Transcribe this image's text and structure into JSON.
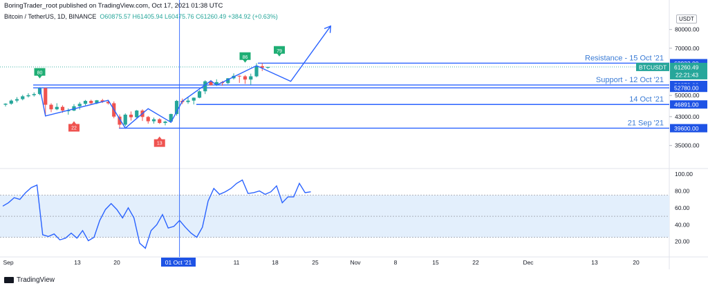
{
  "header": {
    "published": "BoringTrader_root published on TradingView.com, Oct 17, 2021 01:38 UTC",
    "symbol": "Bitcoin / TetherUS, 1D, BINANCE",
    "open": "O60875.57",
    "high": "H61405.94",
    "low": "L60475.76",
    "close": "C61260.49",
    "change": "+384.92 (+0.63%)"
  },
  "currency_badge": "USDT",
  "footer_logo": "TradingView",
  "colors": {
    "bull": "#26a69a",
    "bear": "#ef5350",
    "line": "#2962ff",
    "text_line": "#3a7bd5",
    "rsi_band": "#e3effc"
  },
  "chart_data": [
    {
      "type": "candlestick",
      "x_ticks": [
        "Sep",
        "13",
        "20",
        "01 Oct '21",
        "11",
        "18",
        "25",
        "Nov",
        "8",
        "15",
        "22",
        "Dec",
        "13",
        "20"
      ],
      "y_ticks": [
        80000,
        70000,
        50000,
        43000,
        35000
      ],
      "ylim": [
        30000,
        86000
      ],
      "scale": "log",
      "candles": [
        {
          "o": 46800,
          "h": 47300,
          "l": 46200,
          "c": 47150
        },
        {
          "o": 47150,
          "h": 48600,
          "l": 46800,
          "c": 48200
        },
        {
          "o": 48200,
          "h": 49400,
          "l": 47600,
          "c": 48700
        },
        {
          "o": 48700,
          "h": 50200,
          "l": 48300,
          "c": 49700
        },
        {
          "o": 49700,
          "h": 50800,
          "l": 49300,
          "c": 50100
        },
        {
          "o": 50100,
          "h": 51100,
          "l": 49600,
          "c": 50500
        },
        {
          "o": 50500,
          "h": 52900,
          "l": 50100,
          "c": 52700
        },
        {
          "o": 52700,
          "h": 52900,
          "l": 43100,
          "c": 46800
        },
        {
          "o": 46800,
          "h": 47300,
          "l": 44400,
          "c": 45300
        },
        {
          "o": 45300,
          "h": 47300,
          "l": 45000,
          "c": 46100
        },
        {
          "o": 46100,
          "h": 46600,
          "l": 44200,
          "c": 44900
        },
        {
          "o": 44900,
          "h": 45600,
          "l": 43600,
          "c": 44900
        },
        {
          "o": 44900,
          "h": 47000,
          "l": 44700,
          "c": 46300
        },
        {
          "o": 46300,
          "h": 47700,
          "l": 45200,
          "c": 47100
        },
        {
          "o": 47100,
          "h": 48400,
          "l": 46600,
          "c": 48100
        },
        {
          "o": 48100,
          "h": 48500,
          "l": 46700,
          "c": 47300
        },
        {
          "o": 47300,
          "h": 48400,
          "l": 47000,
          "c": 48300
        },
        {
          "o": 48300,
          "h": 48800,
          "l": 47400,
          "c": 47800
        },
        {
          "o": 47800,
          "h": 48300,
          "l": 46900,
          "c": 47300
        },
        {
          "o": 47300,
          "h": 47900,
          "l": 42500,
          "c": 43000
        },
        {
          "o": 43000,
          "h": 43700,
          "l": 39600,
          "c": 40600
        },
        {
          "o": 40600,
          "h": 44000,
          "l": 40100,
          "c": 43600
        },
        {
          "o": 43600,
          "h": 44600,
          "l": 41800,
          "c": 42800
        },
        {
          "o": 42800,
          "h": 45100,
          "l": 42300,
          "c": 44900
        },
        {
          "o": 44900,
          "h": 45300,
          "l": 41700,
          "c": 42900
        },
        {
          "o": 42900,
          "h": 43200,
          "l": 40900,
          "c": 41600
        },
        {
          "o": 41600,
          "h": 42700,
          "l": 40900,
          "c": 42200
        },
        {
          "o": 42200,
          "h": 42500,
          "l": 40800,
          "c": 41100
        },
        {
          "o": 41100,
          "h": 41800,
          "l": 40400,
          "c": 41500
        },
        {
          "o": 41500,
          "h": 43900,
          "l": 41100,
          "c": 43800
        },
        {
          "o": 43800,
          "h": 48400,
          "l": 43300,
          "c": 48100
        },
        {
          "o": 48100,
          "h": 48900,
          "l": 47000,
          "c": 47700
        },
        {
          "o": 47700,
          "h": 49400,
          "l": 47100,
          "c": 48200
        },
        {
          "o": 48200,
          "h": 49300,
          "l": 46900,
          "c": 49200
        },
        {
          "o": 49200,
          "h": 51900,
          "l": 49000,
          "c": 51500
        },
        {
          "o": 51500,
          "h": 55700,
          "l": 50500,
          "c": 55300
        },
        {
          "o": 55300,
          "h": 55800,
          "l": 53700,
          "c": 53800
        },
        {
          "o": 53800,
          "h": 56100,
          "l": 53500,
          "c": 55000
        },
        {
          "o": 55000,
          "h": 55400,
          "l": 53600,
          "c": 54600
        },
        {
          "o": 54600,
          "h": 56600,
          "l": 54200,
          "c": 56500
        },
        {
          "o": 56500,
          "h": 58500,
          "l": 56000,
          "c": 57500
        },
        {
          "o": 57500,
          "h": 57700,
          "l": 54700,
          "c": 57300
        },
        {
          "o": 57300,
          "h": 57800,
          "l": 54300,
          "c": 56000
        },
        {
          "o": 56000,
          "h": 58400,
          "l": 54000,
          "c": 57300
        },
        {
          "o": 57300,
          "h": 62900,
          "l": 56900,
          "c": 61600
        },
        {
          "o": 61600,
          "h": 62900,
          "l": 59500,
          "c": 60900
        },
        {
          "o": 60900,
          "h": 61400,
          "l": 60500,
          "c": 61260
        }
      ],
      "levels": [
        {
          "value": 62933,
          "label": "Resistance - 15 Oct '21",
          "tag": "62933.00"
        },
        {
          "value": 53879,
          "label": "Support - 12 Oct '21",
          "tag": "53879.00"
        },
        {
          "value": 52780,
          "label": "",
          "tag": "52780.00"
        },
        {
          "value": 46891,
          "label": "14 Oct '21",
          "tag": "46891.00"
        },
        {
          "value": 39600,
          "label": "21 Sep '21",
          "tag": "39600.00"
        }
      ],
      "current_price": {
        "symbol": "BTCUSDT",
        "value": "61260.49",
        "countdown": "22:21:43"
      },
      "zigzag": [
        {
          "i": 6,
          "p": 53000
        },
        {
          "i": 7,
          "p": 43200
        },
        {
          "i": 18,
          "p": 48300
        },
        {
          "i": 21,
          "p": 39600
        },
        {
          "i": 25,
          "p": 45500
        },
        {
          "i": 29,
          "p": 41300
        },
        {
          "i": 31,
          "p": 48000
        },
        {
          "i": 36,
          "p": 55500
        },
        {
          "i": 37,
          "p": 53800
        },
        {
          "i": 44,
          "p": 61800
        },
        {
          "i": 50,
          "p": 55300
        },
        {
          "i": 57,
          "p": 82000
        }
      ],
      "annotations": [
        {
          "i": 6,
          "text": "80",
          "kind": "overbought",
          "p": 59000
        },
        {
          "i": 12,
          "text": "22",
          "kind": "oversold",
          "p": 39800
        },
        {
          "i": 27,
          "text": "13",
          "kind": "oversold",
          "p": 35700
        },
        {
          "i": 42,
          "text": "86",
          "kind": "overbought",
          "p": 66000
        },
        {
          "i": 48,
          "text": "79",
          "kind": "overbought",
          "p": 69000
        }
      ]
    },
    {
      "type": "line",
      "name": "",
      "y_ticks": [
        100,
        80,
        60,
        40,
        20
      ],
      "ylim": [
        5,
        105
      ],
      "band": [
        25,
        75
      ],
      "values": [
        62,
        66,
        72,
        70,
        78,
        84,
        87,
        28,
        26,
        29,
        22,
        24,
        30,
        24,
        33,
        21,
        25,
        45,
        58,
        65,
        58,
        48,
        60,
        48,
        18,
        12,
        33,
        40,
        52,
        36,
        38,
        45,
        37,
        30,
        25,
        37,
        68,
        83,
        76,
        79,
        83,
        89,
        93,
        77,
        78,
        80,
        76,
        79,
        86,
        66,
        73,
        73,
        89,
        78,
        79
      ]
    }
  ]
}
